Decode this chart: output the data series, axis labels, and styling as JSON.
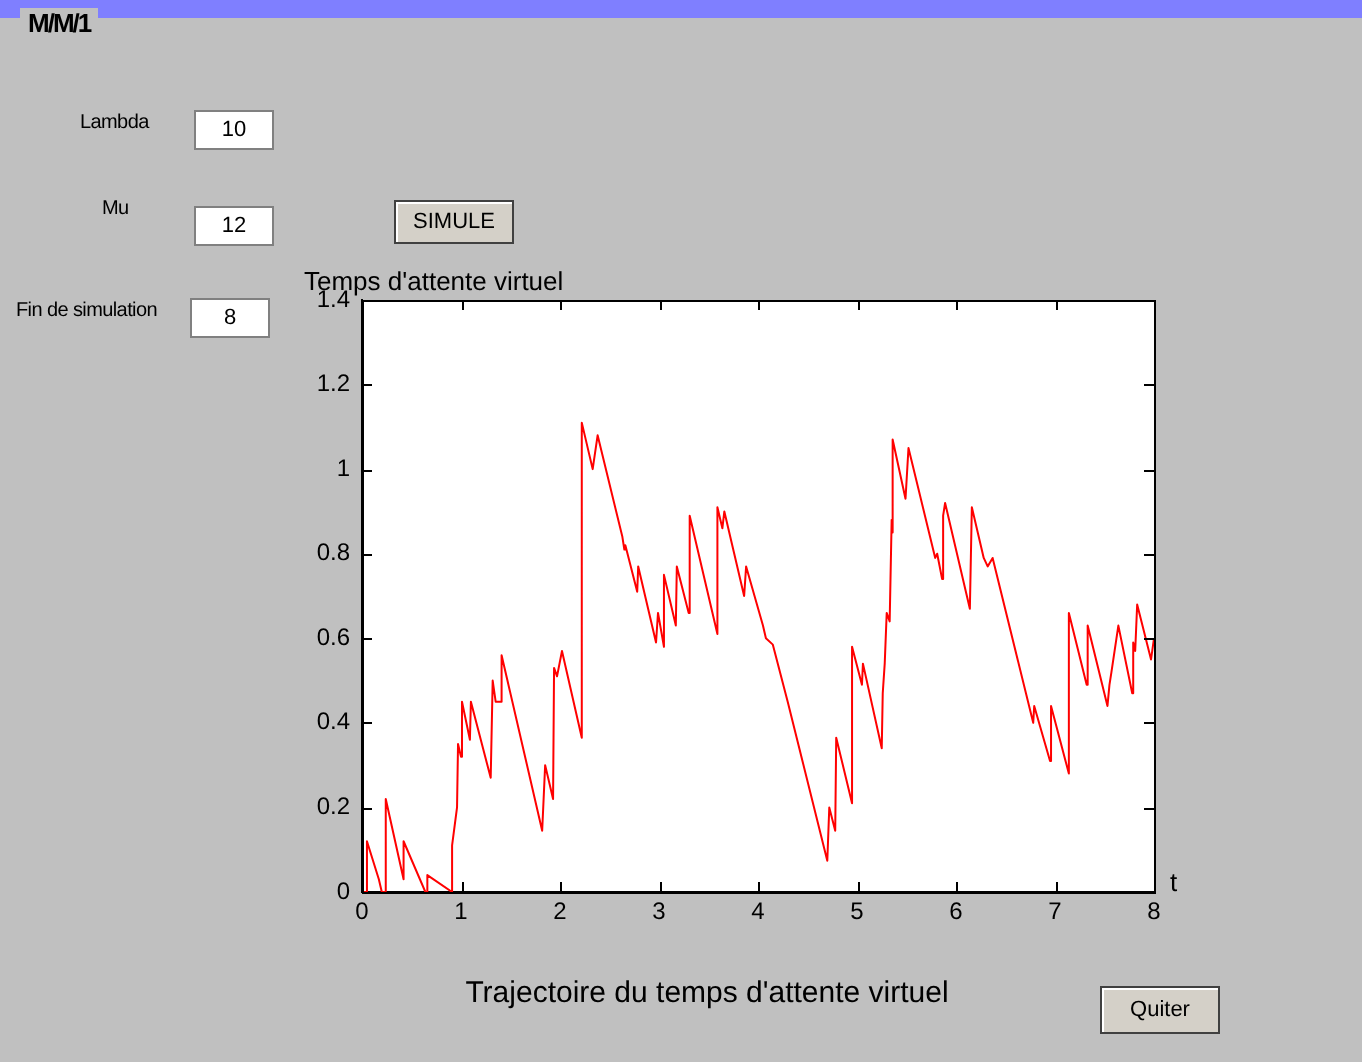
{
  "chart_data": {
    "type": "line",
    "title": "Trajectoire du temps d'attente virtuel",
    "xlabel": "t",
    "ylabel": "Temps d'attente virtuel",
    "annotations": [
      "M/M/1",
      "Lambda",
      "10",
      "Mu",
      "12",
      "Fin de simulation",
      "8",
      "SIMULE",
      "Quiter"
    ],
    "xlim": [
      0,
      8
    ],
    "xticks": [
      0,
      1,
      2,
      3,
      4,
      5,
      6,
      7,
      8
    ],
    "ylim": [
      0,
      1.4
    ],
    "yticks": [
      0,
      0.2,
      0.4,
      0.6,
      0.8,
      1,
      1.2,
      1.4
    ],
    "grid": false,
    "legend": false,
    "marker": "none",
    "line_style": "solid",
    "series": [
      {
        "color": "#ff0000",
        "x": [
          0,
          0.05,
          0.05,
          0.17,
          0.2,
          0.22,
          0.24,
          0.24,
          0.42,
          0.42,
          0.64,
          0.66,
          0.66,
          0.91,
          0.91,
          0.96,
          0.97,
          1.0,
          1.01,
          1.09,
          1.1,
          1.3,
          1.32,
          1.35,
          1.4,
          1.41,
          1.82,
          1.85,
          1.93,
          1.94,
          1.97,
          2.02,
          2.22,
          2.22,
          2.33,
          2.38,
          2.63,
          2.65,
          2.66,
          2.78,
          2.79,
          2.97,
          2.99,
          3.05,
          3.05,
          3.17,
          3.18,
          3.3,
          3.31,
          3.59,
          3.59,
          3.64,
          3.66,
          3.76,
          3.86,
          3.88,
          4.05,
          4.08,
          4.15,
          4.3,
          4.7,
          4.72,
          4.78,
          4.79,
          4.95,
          4.95,
          5.05,
          5.06,
          5.25,
          5.26,
          5.28,
          5.3,
          5.33,
          5.35,
          5.36,
          5.36,
          5.49,
          5.52,
          5.79,
          5.81,
          5.86,
          5.87,
          5.89,
          6.14,
          6.16,
          6.28,
          6.32,
          6.37,
          6.78,
          6.79,
          6.95,
          6.96,
          7.14,
          7.14,
          7.32,
          7.33,
          7.53,
          7.55,
          7.57,
          7.64,
          7.78,
          7.79,
          7.81,
          7.83,
          7.97,
          8.0
        ],
        "values": [
          0,
          0,
          0.12,
          0.03,
          0,
          0,
          0,
          0.22,
          0.03,
          0.12,
          0,
          0,
          0.04,
          0,
          0.11,
          0.2,
          0.35,
          0.32,
          0.45,
          0.36,
          0.45,
          0.27,
          0.5,
          0.45,
          0.45,
          0.56,
          0.145,
          0.3,
          0.22,
          0.53,
          0.51,
          0.57,
          0.365,
          1.11,
          1.0,
          1.08,
          0.84,
          0.81,
          0.82,
          0.71,
          0.77,
          0.59,
          0.66,
          0.58,
          0.75,
          0.63,
          0.77,
          0.66,
          0.89,
          0.61,
          0.91,
          0.86,
          0.9,
          0.8,
          0.7,
          0.77,
          0.63,
          0.6,
          0.585,
          0.45,
          0.074,
          0.2,
          0.145,
          0.365,
          0.21,
          0.58,
          0.49,
          0.54,
          0.34,
          0.47,
          0.54,
          0.66,
          0.64,
          0.88,
          0.85,
          1.07,
          0.93,
          1.05,
          0.79,
          0.8,
          0.74,
          0.89,
          0.92,
          0.67,
          0.91,
          0.79,
          0.77,
          0.79,
          0.4,
          0.44,
          0.31,
          0.44,
          0.28,
          0.66,
          0.49,
          0.63,
          0.44,
          0.49,
          0.52,
          0.63,
          0.47,
          0.59,
          0.57,
          0.68,
          0.55,
          0.6
        ]
      }
    ]
  }
}
